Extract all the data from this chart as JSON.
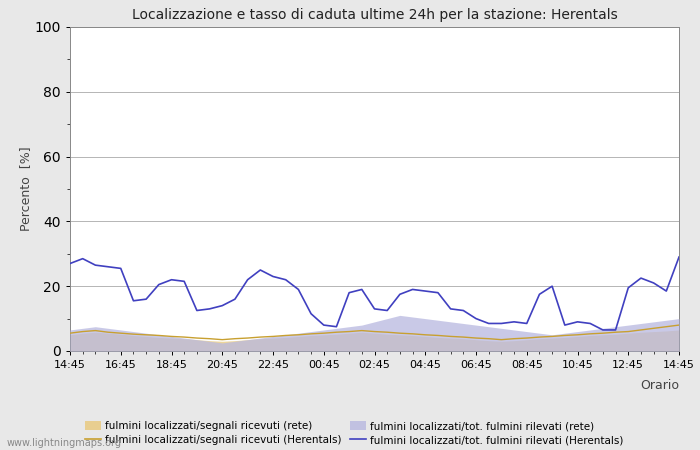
{
  "title": "Localizzazione e tasso di caduta ultime 24h per la stazione: Herentals",
  "xlabel": "Orario",
  "ylabel": "Percento  [%]",
  "ylim": [
    0,
    100
  ],
  "yticks": [
    0,
    20,
    40,
    60,
    80,
    100
  ],
  "yticks_minor": [
    10,
    30,
    50,
    70,
    90
  ],
  "x_labels": [
    "14:45",
    "16:45",
    "18:45",
    "20:45",
    "22:45",
    "00:45",
    "02:45",
    "04:45",
    "06:45",
    "08:45",
    "10:45",
    "12:45",
    "14:45"
  ],
  "background_color": "#e8e8e8",
  "plot_bg_color": "#ffffff",
  "watermark": "www.lightningmaps.org",
  "legend": [
    {
      "label": "fulmini localizzati/segnali ricevuti (rete)",
      "color": "#e8c87a",
      "type": "fill"
    },
    {
      "label": "fulmini localizzati/segnali ricevuti (Herentals)",
      "color": "#c8a030",
      "type": "line"
    },
    {
      "label": "fulmini localizzati/tot. fulmini rilevati (rete)",
      "color": "#b8b8e0",
      "type": "fill"
    },
    {
      "label": "fulmini localizzati/tot. fulmini rilevati (Herentals)",
      "color": "#4040c0",
      "type": "line"
    }
  ],
  "series_loc_rete": [
    5.0,
    5.5,
    5.8,
    5.5,
    5.2,
    4.8,
    4.5,
    4.2,
    4.0,
    3.8,
    3.5,
    3.2,
    3.0,
    3.2,
    3.5,
    3.8,
    4.0,
    4.2,
    4.5,
    4.8,
    5.0,
    5.2,
    5.5,
    5.8,
    5.5,
    5.2,
    5.0,
    4.8,
    4.5,
    4.2,
    4.0,
    3.8,
    3.5,
    3.2,
    3.0,
    3.2,
    3.5,
    3.8,
    4.0,
    4.2,
    4.5,
    4.8,
    5.0,
    5.2,
    5.5,
    5.8,
    6.0,
    6.2,
    6.5
  ],
  "series_loc_herentals": [
    5.5,
    6.0,
    6.3,
    5.8,
    5.5,
    5.2,
    5.0,
    4.8,
    4.5,
    4.3,
    4.0,
    3.8,
    3.5,
    3.8,
    4.0,
    4.3,
    4.5,
    4.8,
    5.0,
    5.3,
    5.5,
    5.8,
    6.0,
    6.3,
    6.0,
    5.8,
    5.5,
    5.3,
    5.0,
    4.8,
    4.5,
    4.3,
    4.0,
    3.8,
    3.5,
    3.8,
    4.0,
    4.3,
    4.5,
    4.8,
    5.0,
    5.3,
    5.5,
    5.8,
    6.0,
    6.5,
    7.0,
    7.5,
    8.0
  ],
  "series_tot_rete": [
    6.5,
    7.0,
    7.5,
    7.0,
    6.5,
    6.0,
    5.5,
    5.0,
    4.5,
    4.0,
    3.5,
    3.0,
    2.5,
    3.0,
    3.5,
    4.0,
    4.5,
    5.0,
    5.5,
    6.0,
    6.5,
    7.0,
    7.5,
    8.0,
    9.0,
    10.0,
    11.0,
    10.5,
    10.0,
    9.5,
    9.0,
    8.5,
    8.0,
    7.5,
    7.0,
    6.5,
    6.0,
    5.5,
    5.0,
    5.5,
    6.0,
    6.5,
    7.0,
    7.5,
    8.0,
    8.5,
    9.0,
    9.5,
    10.0
  ],
  "series_tot_herentals": [
    27.0,
    28.5,
    26.5,
    26.0,
    25.5,
    15.5,
    16.0,
    20.5,
    22.0,
    21.5,
    12.5,
    13.0,
    14.0,
    16.0,
    22.0,
    25.0,
    23.0,
    22.0,
    19.0,
    11.5,
    8.0,
    7.5,
    18.0,
    19.0,
    13.0,
    12.5,
    17.5,
    19.0,
    18.5,
    18.0,
    13.0,
    12.5,
    10.0,
    8.5,
    8.5,
    9.0,
    8.5,
    17.5,
    20.0,
    8.0,
    9.0,
    8.5,
    6.5,
    6.5,
    19.5,
    22.5,
    21.0,
    18.5,
    29.0
  ]
}
